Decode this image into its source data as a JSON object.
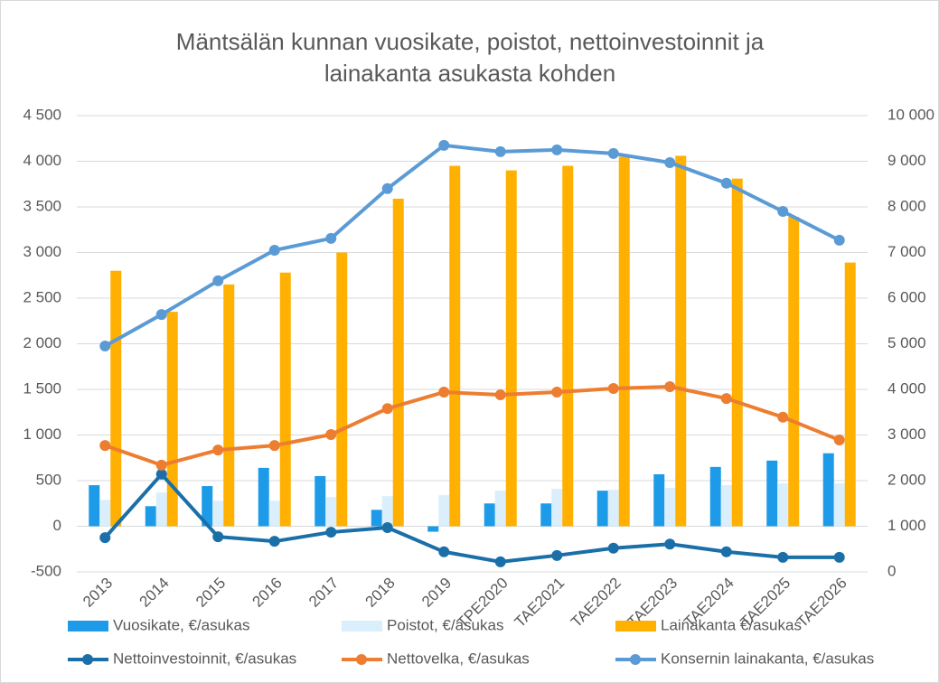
{
  "chart_data": {
    "type": "bar",
    "title": [
      "Mäntsälän kunnan vuosikate, poistot, nettoinvestoinnit ja",
      "lainakanta asukasta kohden"
    ],
    "categories": [
      "2013",
      "2014",
      "2015",
      "2016",
      "2017",
      "2018",
      "2019",
      "TPE2020",
      "TAE2021",
      "TAE2022",
      "TAE2023",
      "TAE2024",
      "TAE2025",
      "TAE2026"
    ],
    "series": [
      {
        "name": "Vuosikate, €/asukas",
        "type": "bar",
        "color": "#1e9be8",
        "values": [
          450,
          220,
          440,
          640,
          550,
          180,
          -60,
          250,
          250,
          390,
          570,
          650,
          720,
          800
        ]
      },
      {
        "name": "Poistot, €/asukas",
        "type": "bar",
        "color": "#dbeefb",
        "values": [
          290,
          370,
          280,
          280,
          320,
          330,
          340,
          390,
          410,
          400,
          420,
          450,
          470,
          470
        ]
      },
      {
        "name": "Lainakanta €/asukas",
        "type": "bar",
        "color": "#ffb000",
        "values": [
          2800,
          2350,
          2650,
          2780,
          3000,
          3590,
          3950,
          3900,
          3950,
          4050,
          4060,
          3810,
          3390,
          2890
        ]
      },
      {
        "name": "Nettoinvestoinnit, €/asukas",
        "type": "line",
        "axis": "y2",
        "color": "#1b6fa8",
        "values": [
          750,
          2140,
          770,
          670,
          870,
          970,
          440,
          220,
          360,
          520,
          610,
          440,
          320,
          320
        ]
      },
      {
        "name": "Nettovelka, €/asukas",
        "type": "line",
        "axis": "y2",
        "color": "#ed7d31",
        "values": [
          2770,
          2340,
          2670,
          2770,
          3010,
          3580,
          3940,
          3880,
          3940,
          4020,
          4060,
          3800,
          3390,
          2890
        ]
      },
      {
        "name": "Konsernin lainakanta, €/asukas",
        "type": "line",
        "axis": "y2",
        "color": "#5b9bd5",
        "values": [
          4950,
          5640,
          6380,
          7050,
          7310,
          8400,
          9350,
          9210,
          9250,
          9170,
          8970,
          8520,
          7900,
          7270
        ]
      }
    ],
    "ylim": [
      -500,
      4500
    ],
    "yticks": [
      {
        "value": -500,
        "label": "-500"
      },
      0,
      500,
      {
        "value": 1000,
        "label": "1 000"
      },
      {
        "value": 1500,
        "label": "1 500"
      },
      {
        "value": 2000,
        "label": "2 000"
      },
      {
        "value": 2500,
        "label": "2 500"
      },
      {
        "value": 3000,
        "label": "3 000"
      },
      {
        "value": 3500,
        "label": "3 500"
      },
      {
        "value": 4000,
        "label": "4 000"
      },
      {
        "value": 4500,
        "label": "4 500"
      }
    ],
    "y2lim": [
      0,
      10000
    ],
    "y2ticks": [
      0,
      {
        "value": 1000,
        "label": "1 000"
      },
      {
        "value": 2000,
        "label": "2 000"
      },
      {
        "value": 3000,
        "label": "3 000"
      },
      {
        "value": 4000,
        "label": "4 000"
      },
      {
        "value": 5000,
        "label": "5 000"
      },
      {
        "value": 6000,
        "label": "6 000"
      },
      {
        "value": 7000,
        "label": "7 000"
      },
      {
        "value": 8000,
        "label": "8 000"
      },
      {
        "value": 9000,
        "label": "9 000"
      },
      {
        "value": 10000,
        "label": "10 000"
      }
    ],
    "grid": true,
    "legend": "bottom"
  }
}
